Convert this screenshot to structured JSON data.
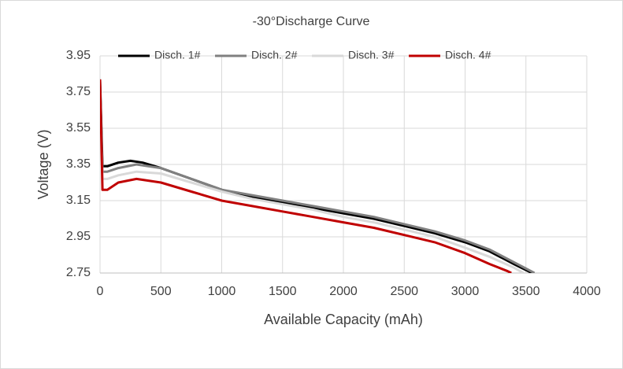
{
  "chart_data": {
    "type": "line",
    "title": "-30°Discharge Curve",
    "x_label": "Available Capacity (mAh)",
    "y_label": "Voltage (V)",
    "xlim": [
      0,
      4000
    ],
    "xticks": [
      0,
      500,
      1000,
      1500,
      2000,
      2500,
      3000,
      3500,
      4000
    ],
    "ylim": [
      2.75,
      3.95
    ],
    "yticks": [
      2.75,
      2.95,
      3.15,
      3.35,
      3.55,
      3.75,
      3.95
    ],
    "grid": true,
    "legend": "top",
    "series": [
      {
        "name": "Disch. 1#",
        "color": "#000000",
        "x": [
          0,
          20,
          60,
          150,
          250,
          350,
          500,
          750,
          1000,
          1250,
          1500,
          1750,
          2000,
          2250,
          2500,
          2750,
          3000,
          3200,
          3400,
          3550
        ],
        "values": [
          3.82,
          3.34,
          3.34,
          3.36,
          3.37,
          3.36,
          3.33,
          3.27,
          3.21,
          3.17,
          3.14,
          3.11,
          3.08,
          3.05,
          3.01,
          2.97,
          2.92,
          2.87,
          2.8,
          2.75
        ]
      },
      {
        "name": "Disch. 2#",
        "color": "#808080",
        "x": [
          0,
          20,
          60,
          150,
          300,
          500,
          750,
          1000,
          1250,
          1500,
          1750,
          2000,
          2250,
          2500,
          2750,
          3000,
          3200,
          3400,
          3570
        ],
        "values": [
          3.78,
          3.31,
          3.31,
          3.33,
          3.35,
          3.33,
          3.27,
          3.21,
          3.18,
          3.15,
          3.12,
          3.09,
          3.06,
          3.02,
          2.98,
          2.93,
          2.88,
          2.81,
          2.75
        ]
      },
      {
        "name": "Disch. 3#",
        "color": "#d9d9d9",
        "x": [
          0,
          20,
          60,
          150,
          300,
          500,
          750,
          1000,
          1250,
          1500,
          1750,
          2000,
          2250,
          2500,
          2750,
          3000,
          3200,
          3400,
          3480
        ],
        "values": [
          3.7,
          3.27,
          3.27,
          3.29,
          3.31,
          3.3,
          3.25,
          3.2,
          3.16,
          3.13,
          3.1,
          3.06,
          3.03,
          2.99,
          2.95,
          2.89,
          2.84,
          2.78,
          2.75
        ]
      },
      {
        "name": "Disch. 4#",
        "color": "#c00000",
        "x": [
          0,
          20,
          60,
          150,
          300,
          500,
          750,
          1000,
          1250,
          1500,
          1750,
          2000,
          2250,
          2500,
          2750,
          3000,
          3200,
          3350,
          3380
        ],
        "values": [
          3.82,
          3.21,
          3.21,
          3.25,
          3.27,
          3.25,
          3.2,
          3.15,
          3.12,
          3.09,
          3.06,
          3.03,
          3.0,
          2.96,
          2.92,
          2.86,
          2.8,
          2.76,
          2.75
        ]
      }
    ]
  }
}
